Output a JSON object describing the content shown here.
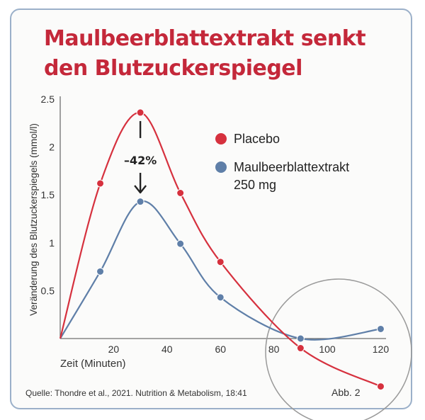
{
  "title_line1": "Maulbeerblattextrakt senkt",
  "title_line2": "den Blutzuckerspiegel",
  "source": "Quelle: Thondre et al., 2021. Nutrition & Metabolism, 18:41",
  "figure_label": "Abb. 2",
  "colors": {
    "placebo": "#d6313e",
    "extract": "#5f7fa8",
    "title": "#c4283a",
    "circle": "#9a9a9a"
  },
  "chart_data": {
    "type": "line",
    "xlabel": "Zeit (Minuten)",
    "ylabel": "Veränderung des Blutzuckerspiegels (mmol/l)",
    "xlim": [
      0,
      122
    ],
    "ylim": [
      0,
      2.5
    ],
    "x_ticks": [
      "20",
      "40",
      "60",
      "80",
      "100",
      "120"
    ],
    "y_ticks": [
      "0.5",
      "1",
      "1.5",
      "2",
      "2.5"
    ],
    "legend_position": "right",
    "annotation": "–42%",
    "series": [
      {
        "name": "Placebo",
        "color": "#d6313e",
        "points": [
          [
            0,
            0
          ],
          [
            15,
            1.62
          ],
          [
            30,
            2.36
          ],
          [
            45,
            1.52
          ],
          [
            60,
            0.8
          ],
          [
            90,
            -0.1
          ],
          [
            120,
            -0.5
          ]
        ]
      },
      {
        "name": "Maulbeerblattextrakt 250 mg",
        "color": "#5f7fa8",
        "points": [
          [
            0,
            0
          ],
          [
            15,
            0.7
          ],
          [
            30,
            1.43
          ],
          [
            45,
            0.99
          ],
          [
            60,
            0.43
          ],
          [
            90,
            0.0
          ],
          [
            120,
            0.1
          ]
        ]
      }
    ],
    "legend_lines": {
      "placebo": [
        "Placebo"
      ],
      "extract": [
        "Maulbeerblattextrakt",
        "250 mg"
      ]
    }
  }
}
